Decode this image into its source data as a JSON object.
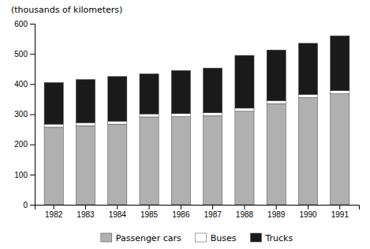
{
  "chart_data": {
    "type": "bar",
    "stacked": true,
    "ylabel": "(thousands of kilometers)",
    "categories": [
      "1982",
      "1983",
      "1984",
      "1985",
      "1986",
      "1987",
      "1988",
      "1989",
      "1990",
      "1991"
    ],
    "series": [
      {
        "name": "Passenger cars",
        "color": "#b0b0b0",
        "values": [
          257,
          262,
          267,
          291,
          292,
          295,
          310,
          335,
          355,
          368
        ]
      },
      {
        "name": "Buses",
        "color": "#ffffff",
        "values": [
          10,
          10,
          10,
          10,
          10,
          10,
          10,
          10,
          10,
          10
        ]
      },
      {
        "name": "Trucks",
        "color": "#1a1a1a",
        "values": [
          138,
          143,
          148,
          133,
          143,
          148,
          175,
          168,
          170,
          182
        ]
      }
    ],
    "ylim": [
      0,
      600
    ],
    "yticks": [
      0,
      100,
      200,
      300,
      400,
      500,
      600
    ],
    "grid": false,
    "legend": "bottom"
  }
}
